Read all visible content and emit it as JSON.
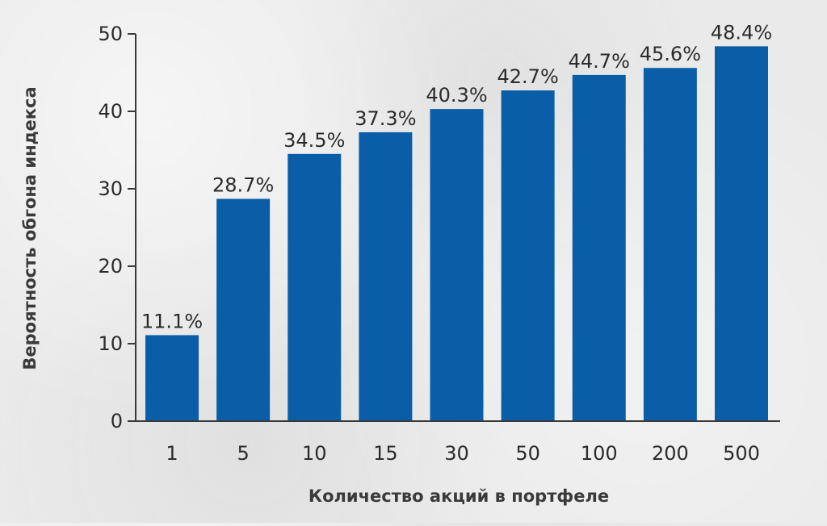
{
  "chart_data": {
    "type": "bar",
    "title": "",
    "xlabel": "Количество акций в портфеле",
    "ylabel": "Вероятность обгона индекса",
    "categories": [
      "1",
      "5",
      "10",
      "15",
      "30",
      "50",
      "100",
      "200",
      "500"
    ],
    "values": [
      11.1,
      28.7,
      34.5,
      37.3,
      40.3,
      42.7,
      44.7,
      45.6,
      48.4
    ],
    "data_labels": [
      "11.1%",
      "28.7%",
      "34.5%",
      "37.3%",
      "40.3%",
      "42.7%",
      "44.7%",
      "45.6%",
      "48.4%"
    ],
    "ylim": [
      0,
      50
    ],
    "yticks": [
      0,
      10,
      20,
      30,
      40,
      50
    ],
    "grid": false,
    "legend": "none",
    "bar_color": "#0a5ea8",
    "axis_color": "#3a3a3a"
  }
}
